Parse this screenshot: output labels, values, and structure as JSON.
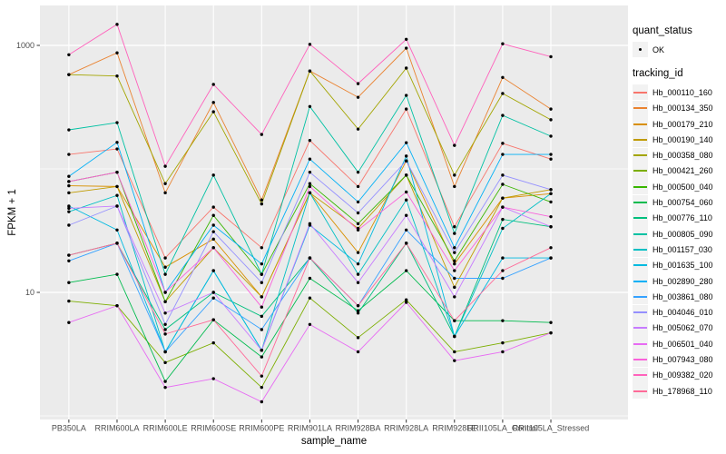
{
  "figure": {
    "background": "#FFFFFF",
    "panel_background": "#EBEBEB",
    "grid_color": "#FFFFFF",
    "tick_label_color": "#4D4D4D",
    "tick_mark_color": "#333333",
    "point_color": "#000000",
    "legend_key_background": "#F2F2F2"
  },
  "axes": {
    "x_title": "sample_name",
    "y_title": "FPKM + 1"
  },
  "legend": {
    "quant_title": "quant_status",
    "quant_items": [
      {
        "label": "OK",
        "marker": "black-point"
      }
    ],
    "tracking_title": "tracking_id"
  },
  "chart_data": {
    "type": "line",
    "title": "",
    "xlabel": "sample_name",
    "ylabel": "FPKM + 1",
    "y_scale": "log10",
    "ylim": [
      1.2,
      2100
    ],
    "grid": true,
    "legend_position": "right",
    "marker": "black-point-all-series",
    "categories": [
      "PB350LA",
      "RRIM600LA",
      "RRIM600LE",
      "RRIM600SE",
      "RRIM600PE",
      "RRIM901LA",
      "RRIM928BA",
      "RRIM928LA",
      "RRIM928LE",
      "RRII105LA_Control",
      "RRII105LA_Stressed"
    ],
    "y_ticks": [
      {
        "value": 1000,
        "label": "1000"
      },
      {
        "value": 10,
        "label": "10"
      }
    ],
    "y_minor_gridlines": [
      1,
      100
    ],
    "series": [
      {
        "name": "Hb_000110_160",
        "color": "#F8766D",
        "values": [
          131,
          145,
          19,
          49,
          23,
          170,
          72,
          305,
          34,
          161,
          120
        ]
      },
      {
        "name": "Hb_000134_350",
        "color": "#EA8331",
        "values": [
          580,
          870,
          64,
          345,
          56,
          620,
          380,
          950,
          72,
          550,
          305
        ]
      },
      {
        "name": "Hb_000179_210",
        "color": "#D89000",
        "values": [
          73,
          72,
          16,
          27,
          9.2,
          64,
          21,
          116,
          17,
          58,
          63
        ]
      },
      {
        "name": "Hb_000190_140",
        "color": "#C09B00",
        "values": [
          64,
          72,
          8.4,
          23,
          9.2,
          64,
          33,
          89,
          11,
          58,
          68
        ]
      },
      {
        "name": "Hb_000358_080",
        "color": "#A3A500",
        "values": [
          580,
          565,
          76,
          290,
          52,
          620,
          210,
          655,
          89,
          408,
          250
        ]
      },
      {
        "name": "Hb_000421_260",
        "color": "#7CAE00",
        "values": [
          8.5,
          7.8,
          2.7,
          3.9,
          1.7,
          9,
          4.3,
          8.7,
          3.3,
          3.9,
          4.7
        ]
      },
      {
        "name": "Hb_000500_040",
        "color": "#39B600",
        "values": [
          79,
          94,
          8.4,
          42,
          14,
          76,
          36,
          89,
          18,
          75,
          54
        ]
      },
      {
        "name": "Hb_000754_060",
        "color": "#00BB4E",
        "values": [
          12,
          14,
          1.9,
          6,
          3,
          13,
          7.1,
          15,
          5.9,
          5.9,
          5.7
        ]
      },
      {
        "name": "Hb_000776_110",
        "color": "#00BF7D",
        "values": [
          20,
          25,
          5,
          10,
          6.4,
          19,
          6.8,
          25,
          4.4,
          39,
          34
        ]
      },
      {
        "name": "Hb_000805_090",
        "color": "#00C1A3",
        "values": [
          207,
          237,
          14,
          89,
          14,
          320,
          94,
          394,
          30,
          271,
          184
        ]
      },
      {
        "name": "Hb_001157_030",
        "color": "#00BFC4",
        "values": [
          45,
          61,
          3.3,
          15,
          3.4,
          64,
          14,
          56,
          4.4,
          33,
          63
        ]
      },
      {
        "name": "Hb_001635_100",
        "color": "#00BAE0",
        "values": [
          50,
          32,
          3.3,
          15,
          3.4,
          35,
          17,
          127,
          4.4,
          19,
          19
        ]
      },
      {
        "name": "Hb_002890_280",
        "color": "#00B0F6",
        "values": [
          87,
          164,
          10,
          35,
          17,
          120,
          54,
          163,
          23,
          131,
          131
        ]
      },
      {
        "name": "Hb_003861_080",
        "color": "#35A2FF",
        "values": [
          18,
          25,
          3.3,
          9,
          5,
          19,
          7.8,
          32,
          13,
          13,
          19
        ]
      },
      {
        "name": "Hb_004046_010",
        "color": "#9590FF",
        "values": [
          35,
          50,
          5.5,
          31,
          12,
          94,
          44,
          116,
          21,
          89,
          68
        ]
      },
      {
        "name": "Hb_005062_070",
        "color": "#C77CFF",
        "values": [
          48,
          50,
          6.8,
          10,
          3.4,
          36,
          12,
          42,
          9.2,
          49,
          34
        ]
      },
      {
        "name": "Hb_006501_040",
        "color": "#E76BF3",
        "values": [
          5.7,
          7.8,
          1.7,
          2,
          1.3,
          5.5,
          3.3,
          8.3,
          2.8,
          3.3,
          4.7
        ]
      },
      {
        "name": "Hb_007943_080",
        "color": "#FA62DB",
        "values": [
          79,
          94,
          10,
          23,
          7.6,
          72,
          32,
          65,
          15,
          49,
          41
        ]
      },
      {
        "name": "Hb_009382_020",
        "color": "#FF62BC",
        "values": [
          840,
          1480,
          105,
          483,
          190,
          1020,
          490,
          1120,
          155,
          1030,
          810
        ]
      },
      {
        "name": "Hb_178968_110",
        "color": "#FF6A98",
        "values": [
          20,
          25,
          4.6,
          6,
          2.1,
          19,
          7.8,
          25,
          5.9,
          15,
          23
        ]
      }
    ]
  }
}
